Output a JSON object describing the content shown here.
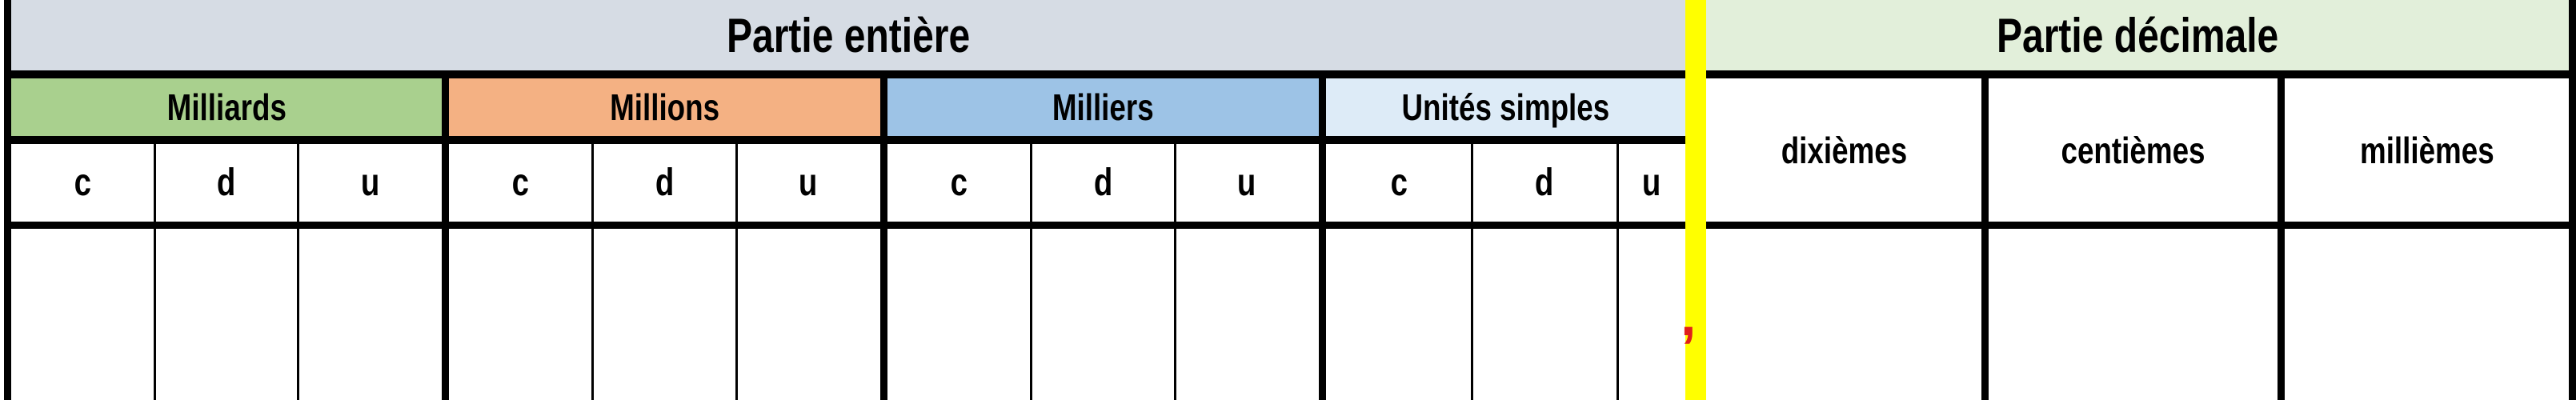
{
  "colors": {
    "integer_header": "#d6dce4",
    "decimal_header": "#e2efda",
    "separator": "#ffff00",
    "comma": "#e0201a"
  },
  "integer_part": {
    "title": "Partie entière",
    "groups": [
      {
        "label": "Milliards",
        "color": "#a9d08e",
        "columns": [
          "c",
          "d",
          "u"
        ]
      },
      {
        "label": "Millions",
        "color": "#f4b183",
        "columns": [
          "c",
          "d",
          "u"
        ]
      },
      {
        "label": "Milliers",
        "color": "#9dc3e6",
        "columns": [
          "c",
          "d",
          "u"
        ]
      },
      {
        "label": "Unités simples",
        "color": "#ddebf7",
        "columns": [
          "c",
          "d",
          "u"
        ]
      }
    ]
  },
  "separator_mark": ",",
  "decimal_part": {
    "title": "Partie décimale",
    "columns": [
      "dixièmes",
      "centièmes",
      "millièmes"
    ]
  }
}
